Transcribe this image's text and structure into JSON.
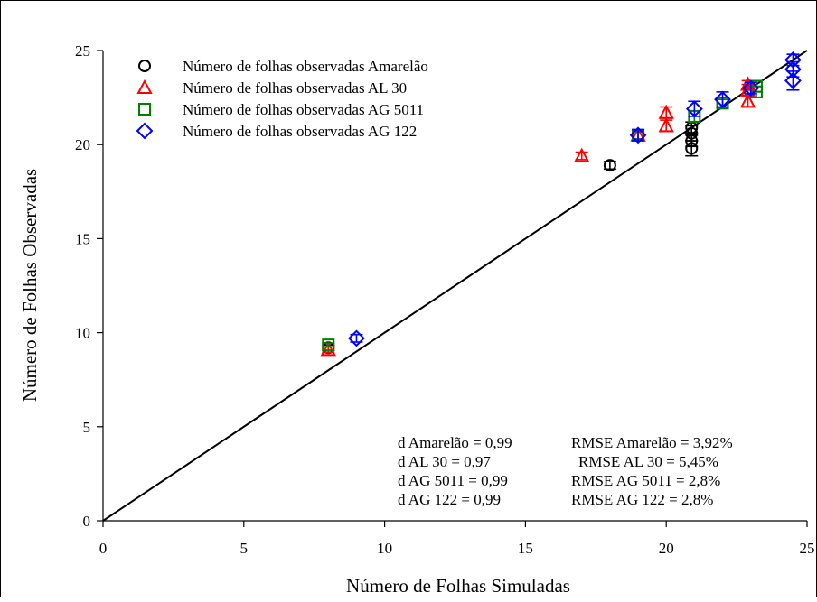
{
  "chart_data": {
    "type": "scatter",
    "xlabel": "Número de Folhas Simuladas",
    "ylabel": "Número de Folhas Observadas",
    "xlim": [
      0,
      25
    ],
    "ylim": [
      0,
      25
    ],
    "x_ticks": [
      "0",
      "5",
      "10",
      "15",
      "20",
      "25"
    ],
    "y_ticks": [
      "0",
      "5",
      "10",
      "15",
      "20",
      "25"
    ],
    "grid": false,
    "legend_position": "top-left",
    "reference_line": "1:1",
    "series": [
      {
        "name": "Número de folhas observadas Amarelão",
        "marker": "circle",
        "color": "#000000",
        "points": [
          {
            "x": 8,
            "y": 9.2,
            "err": 0.15
          },
          {
            "x": 18,
            "y": 18.9,
            "err": 0.2
          },
          {
            "x": 20.9,
            "y": 19.8,
            "err": 0.4
          },
          {
            "x": 20.9,
            "y": 20.2,
            "err": 0.3
          },
          {
            "x": 20.9,
            "y": 20.6,
            "err": 0.4
          },
          {
            "x": 20.9,
            "y": 20.9,
            "err": 0.3
          }
        ]
      },
      {
        "name": "Número de folhas observadas AL 30",
        "marker": "triangle",
        "color": "#ff0000",
        "points": [
          {
            "x": 8,
            "y": 9.1,
            "err": 0.15
          },
          {
            "x": 17,
            "y": 19.4,
            "err": 0.2
          },
          {
            "x": 19,
            "y": 20.5,
            "err": 0.2
          },
          {
            "x": 20,
            "y": 21.0,
            "err": 0.3
          },
          {
            "x": 20,
            "y": 21.7,
            "err": 0.3
          },
          {
            "x": 22.9,
            "y": 22.3,
            "err": 0.3
          },
          {
            "x": 22.9,
            "y": 22.9,
            "err": 0.3
          },
          {
            "x": 22.9,
            "y": 23.2,
            "err": 0.2
          }
        ]
      },
      {
        "name": "Número de folhas observadas AG 5011",
        "marker": "square",
        "color": "#008000",
        "points": [
          {
            "x": 8,
            "y": 9.35,
            "err": 0.1
          },
          {
            "x": 19,
            "y": 20.5,
            "err": 0.2
          },
          {
            "x": 21,
            "y": 21.5,
            "err": 0.3
          },
          {
            "x": 22,
            "y": 22.2,
            "err": 0.2
          },
          {
            "x": 23.2,
            "y": 22.8,
            "err": 0.3
          },
          {
            "x": 23.2,
            "y": 23.1,
            "err": 0.3
          }
        ]
      },
      {
        "name": "Número de folhas observadas AG 122",
        "marker": "diamond",
        "color": "#0000ff",
        "points": [
          {
            "x": 9,
            "y": 9.7,
            "err": 0.2
          },
          {
            "x": 19,
            "y": 20.5,
            "err": 0.3
          },
          {
            "x": 21,
            "y": 21.9,
            "err": 0.4
          },
          {
            "x": 22,
            "y": 22.4,
            "err": 0.4
          },
          {
            "x": 23,
            "y": 23.0,
            "err": 0.3
          },
          {
            "x": 24.5,
            "y": 23.4,
            "err": 0.5
          },
          {
            "x": 24.5,
            "y": 24.0,
            "err": 0.4
          },
          {
            "x": 24.5,
            "y": 24.5,
            "err": 0.3
          }
        ]
      }
    ],
    "annotations": [
      {
        "left": "d Amarelão = 0,99",
        "right": "RMSE Amarelão = 3,92%"
      },
      {
        "left": "d AL 30 = 0,97",
        "right": "RMSE AL 30 = 5,45%"
      },
      {
        "left": "d AG 5011 = 0,99",
        "right": "RMSE AG 5011 = 2,8%"
      },
      {
        "left": "d AG 122 = 0,99",
        "right": "RMSE AG 122 = 2,8%"
      }
    ]
  }
}
